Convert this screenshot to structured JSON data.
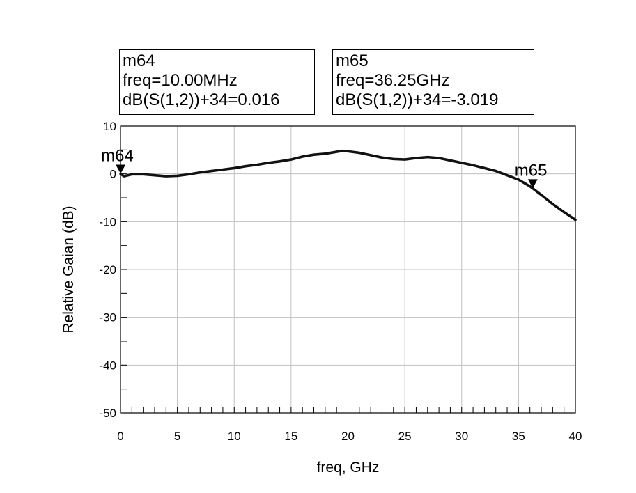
{
  "chart_data": {
    "type": "line",
    "title": "",
    "xlabel": "freq, GHz",
    "ylabel": "Relative Gaian (dB)",
    "xlim": [
      0,
      40
    ],
    "ylim": [
      -50,
      10
    ],
    "x_ticks": [
      0,
      5,
      10,
      15,
      20,
      25,
      30,
      35,
      40
    ],
    "x_tick_labels": [
      "0",
      "5",
      "10",
      "15",
      "20",
      "25",
      "30",
      "35",
      "40"
    ],
    "y_ticks": [
      -50,
      -40,
      -30,
      -20,
      -10,
      0,
      10
    ],
    "y_tick_labels": [
      "-50",
      "-40",
      "-30",
      "-20",
      "-10",
      "0",
      "10"
    ],
    "grid": true,
    "line_color": "#111111",
    "series": [
      {
        "x": [
          0.01,
          0.3,
          1,
          2,
          3,
          4,
          5,
          6,
          7,
          8,
          9,
          10,
          11,
          12,
          13,
          14,
          15,
          16,
          17,
          18,
          19,
          19.5,
          20,
          21,
          22,
          23,
          24,
          25,
          26,
          27,
          28,
          29,
          30,
          31,
          32,
          33,
          34,
          35,
          36,
          37,
          38,
          39,
          40
        ],
        "y": [
          0.0,
          -0.5,
          -0.1,
          -0.1,
          -0.3,
          -0.5,
          -0.4,
          -0.1,
          0.3,
          0.6,
          0.9,
          1.2,
          1.6,
          1.9,
          2.3,
          2.6,
          3.0,
          3.6,
          4.0,
          4.2,
          4.6,
          4.8,
          4.7,
          4.4,
          3.9,
          3.4,
          3.1,
          3.0,
          3.3,
          3.5,
          3.3,
          2.8,
          2.3,
          1.8,
          1.2,
          0.6,
          -0.3,
          -1.2,
          -2.6,
          -4.4,
          -6.3,
          -8.0,
          -9.6
        ]
      }
    ],
    "markers": [
      {
        "name": "m64",
        "x": 0.01,
        "y": 0.016,
        "line1": "m64",
        "line2": "freq=10.00MHz",
        "line3": "dB(S(1,2))+34=0.016"
      },
      {
        "name": "m65",
        "x": 36.25,
        "y": -3.019,
        "line1": "m65",
        "line2": "freq=36.25GHz",
        "line3": "dB(S(1,2))+34=-3.019"
      }
    ]
  }
}
